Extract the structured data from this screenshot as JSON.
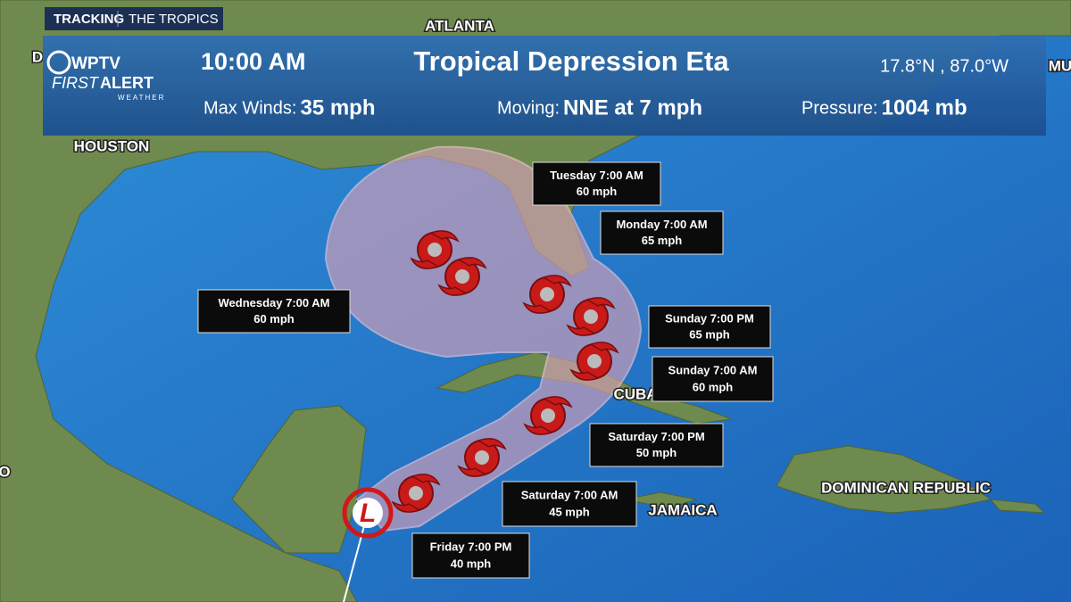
{
  "header": {
    "tab": "TRACKING",
    "section": "THE TROPICS",
    "logo": {
      "station": "WPTV",
      "line1": "FIRST",
      "line2": "ALERT",
      "line3": "WEATHER"
    },
    "time": "10:00 AM",
    "title": "Tropical Depression Eta",
    "position": "17.8°N , 87.0°W",
    "stats": [
      {
        "label": "Max Winds:",
        "value": "35 mph"
      },
      {
        "label": "Moving:",
        "value": "NNE at 7 mph"
      },
      {
        "label": "Pressure:",
        "value": "1004 mb"
      }
    ]
  },
  "map_labels": [
    "ATLANTA",
    "HOUSTON",
    "CUBA",
    "JAMAICA",
    "DOMINICAN REPUBLIC",
    "D",
    "MU",
    "O"
  ],
  "current_marker": "L",
  "forecast": [
    {
      "time": "Friday 7:00 PM",
      "wind": "40 mph"
    },
    {
      "time": "Saturday 7:00 AM",
      "wind": "45 mph"
    },
    {
      "time": "Saturday 7:00 PM",
      "wind": "50 mph"
    },
    {
      "time": "Sunday 7:00 AM",
      "wind": "60 mph"
    },
    {
      "time": "Sunday 7:00 PM",
      "wind": "65 mph"
    },
    {
      "time": "Monday 7:00 AM",
      "wind": "65 mph"
    },
    {
      "time": "Tuesday 7:00 AM",
      "wind": "60 mph"
    },
    {
      "time": "Wednesday 7:00 AM",
      "wind": "60 mph"
    }
  ]
}
